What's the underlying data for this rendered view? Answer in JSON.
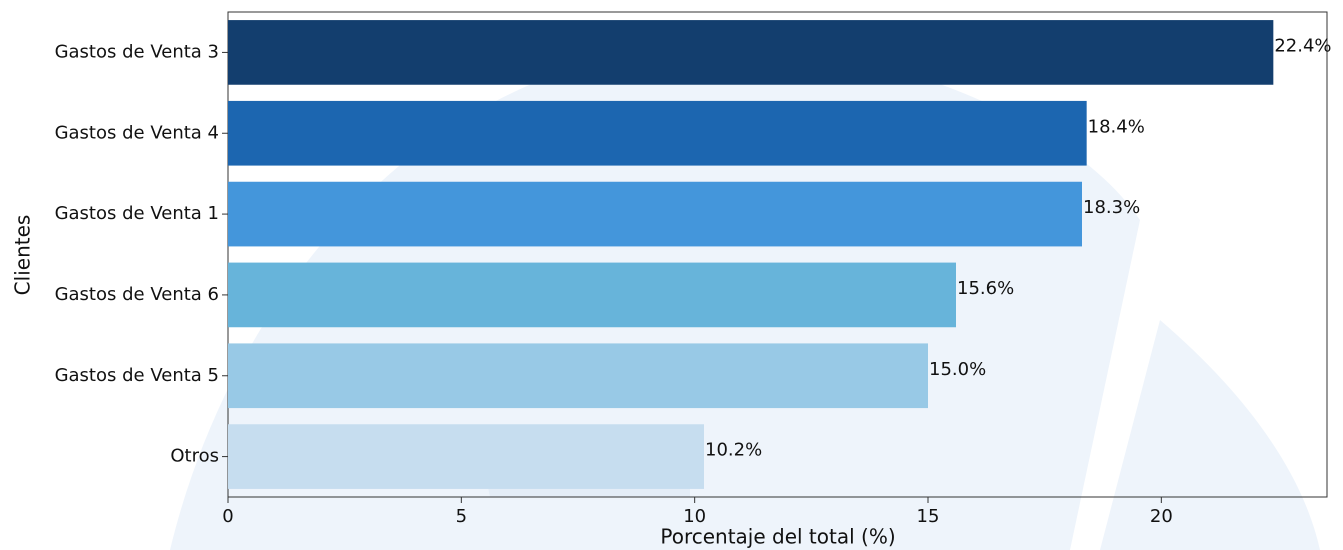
{
  "chart_data": {
    "type": "barh",
    "xlabel": "Porcentaje del total (%)",
    "ylabel": "Clientes",
    "categories": [
      "Gastos de Venta 3",
      "Gastos de Venta 4",
      "Gastos de Venta 1",
      "Gastos de Venta 6",
      "Gastos de Venta 5",
      "Otros"
    ],
    "values": [
      22.4,
      18.4,
      18.3,
      15.6,
      15.0,
      10.2
    ],
    "value_labels": [
      "22.4%",
      "18.4%",
      "18.3%",
      "15.6%",
      "15.0%",
      "10.2%"
    ],
    "colors": [
      "#133e6e",
      "#1c66b0",
      "#4496db",
      "#67b4da",
      "#98c9e6",
      "#c6ddef"
    ],
    "xlim": [
      0,
      23.55
    ],
    "xticks": [
      0,
      5,
      10,
      15,
      20
    ],
    "grid": false
  }
}
